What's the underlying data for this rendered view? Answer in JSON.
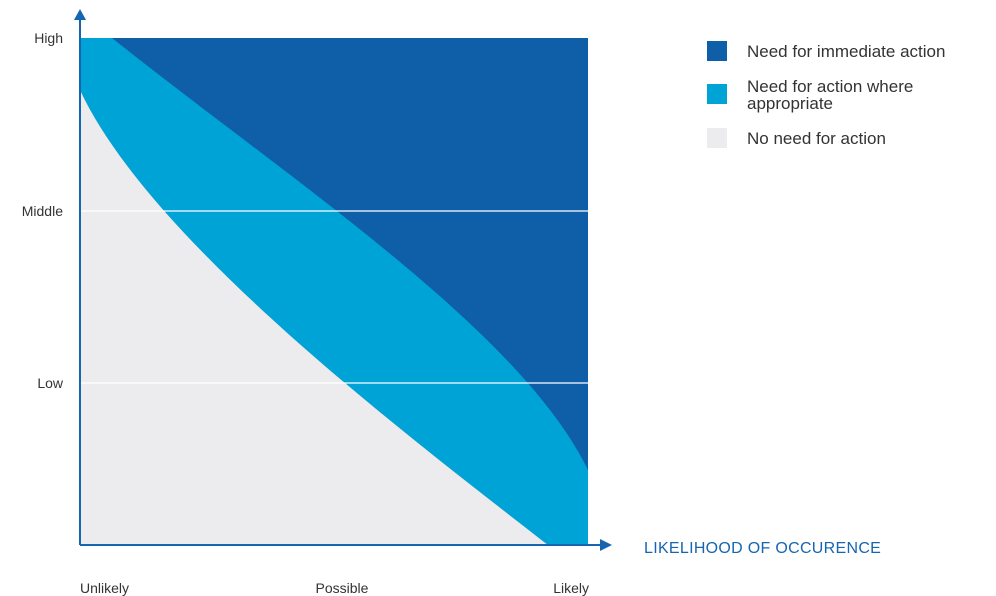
{
  "chart_data": {
    "type": "area",
    "title": "",
    "xlabel": "LIKELIHOOD OF OCCURENCE",
    "ylabel": "",
    "x_ticks": [
      "Unlikely",
      "Possible",
      "Likely"
    ],
    "y_ticks": [
      "Low",
      "Middle",
      "High"
    ],
    "grid": true,
    "legend_position": "top-right",
    "zones": [
      {
        "name": "Need for immediate action",
        "color": "#0f5fa8"
      },
      {
        "name": "Need for action where appropriate",
        "color": "#00a3d6"
      },
      {
        "name": "No need for action",
        "color": "#ececee"
      }
    ]
  },
  "colors": {
    "axis": "#1565b0",
    "grid": "#ffffff",
    "tick_text": "#333333",
    "axis_title": "#1565b0"
  },
  "legend": {
    "items": [
      {
        "label": "Need for immediate action",
        "color": "#0f5fa8"
      },
      {
        "label": "Need for action where appropriate",
        "color": "#00a3d6"
      },
      {
        "label": "No need for action",
        "color": "#ececee"
      }
    ]
  }
}
